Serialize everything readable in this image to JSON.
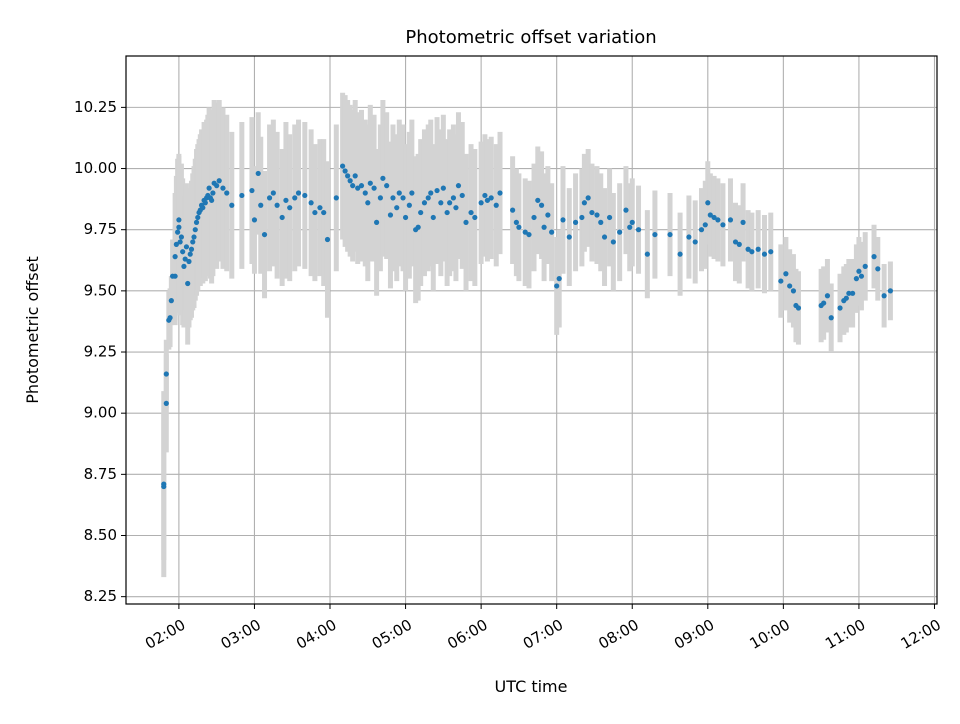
{
  "chart_data": {
    "type": "scatter",
    "title": "Photometric offset variation",
    "xlabel": "UTC time",
    "ylabel": "Photometric offset",
    "x_unit": "hours UTC",
    "xlim": [
      "01:18",
      "12:02"
    ],
    "ylim": [
      8.22,
      10.46
    ],
    "x_ticks": [
      "02:00",
      "03:00",
      "04:00",
      "05:00",
      "06:00",
      "07:00",
      "08:00",
      "09:00",
      "10:00",
      "11:00",
      "12:00"
    ],
    "y_ticks": [
      "8.25",
      "8.50",
      "8.75",
      "9.00",
      "9.25",
      "9.50",
      "9.75",
      "10.00",
      "10.25"
    ],
    "grid": true,
    "marker_color": "#1f77b4",
    "errorbar_color": "#d3d3d3",
    "points": [
      [
        "01:48",
        8.71,
        0.38
      ],
      [
        "01:48",
        8.7,
        0.3
      ],
      [
        "01:50",
        9.04,
        0.2
      ],
      [
        "01:50",
        9.16,
        0.14
      ],
      [
        "01:52",
        9.38,
        0.12
      ],
      [
        "01:53",
        9.39,
        0.12
      ],
      [
        "01:54",
        9.46,
        0.1
      ],
      [
        "01:55",
        9.56,
        0.15
      ],
      [
        "01:57",
        9.56,
        0.2
      ],
      [
        "01:57",
        9.64,
        0.26
      ],
      [
        "01:58",
        9.69,
        0.28
      ],
      [
        "01:59",
        9.74,
        0.3
      ],
      [
        "02:00",
        9.79,
        0.26
      ],
      [
        "02:00",
        9.76,
        0.3
      ],
      [
        "02:01",
        9.7,
        0.3
      ],
      [
        "02:02",
        9.72,
        0.3
      ],
      [
        "02:03",
        9.66,
        0.3
      ],
      [
        "02:04",
        9.6,
        0.25
      ],
      [
        "02:05",
        9.63,
        0.26
      ],
      [
        "02:06",
        9.68,
        0.26
      ],
      [
        "02:07",
        9.53,
        0.25
      ],
      [
        "02:08",
        9.62,
        0.27
      ],
      [
        "02:09",
        9.65,
        0.27
      ],
      [
        "02:10",
        9.67,
        0.28
      ],
      [
        "02:11",
        9.7,
        0.28
      ],
      [
        "02:12",
        9.72,
        0.29
      ],
      [
        "02:13",
        9.75,
        0.29
      ],
      [
        "02:14",
        9.78,
        0.3
      ],
      [
        "02:15",
        9.8,
        0.3
      ],
      [
        "02:16",
        9.82,
        0.3
      ],
      [
        "02:17",
        9.83,
        0.31
      ],
      [
        "02:18",
        9.85,
        0.31
      ],
      [
        "02:19",
        9.84,
        0.31
      ],
      [
        "02:20",
        9.87,
        0.32
      ],
      [
        "02:21",
        9.86,
        0.32
      ],
      [
        "02:22",
        9.88,
        0.32
      ],
      [
        "02:23",
        9.89,
        0.33
      ],
      [
        "02:24",
        9.92,
        0.33
      ],
      [
        "02:25",
        9.88,
        0.33
      ],
      [
        "02:26",
        9.87,
        0.34
      ],
      [
        "02:27",
        9.9,
        0.34
      ],
      [
        "02:28",
        9.94,
        0.34
      ],
      [
        "02:30",
        9.93,
        0.34
      ],
      [
        "02:32",
        9.95,
        0.33
      ],
      [
        "02:35",
        9.92,
        0.33
      ],
      [
        "02:38",
        9.9,
        0.32
      ],
      [
        "02:42",
        9.85,
        0.3
      ],
      [
        "02:50",
        9.89,
        0.3
      ],
      [
        "02:58",
        9.91,
        0.3
      ],
      [
        "03:00",
        9.79,
        0.22
      ],
      [
        "03:03",
        9.98,
        0.25
      ],
      [
        "03:05",
        9.85,
        0.28
      ],
      [
        "03:08",
        9.73,
        0.26
      ],
      [
        "03:12",
        9.88,
        0.3
      ],
      [
        "03:15",
        9.9,
        0.3
      ],
      [
        "03:18",
        9.85,
        0.3
      ],
      [
        "03:22",
        9.8,
        0.28
      ],
      [
        "03:25",
        9.87,
        0.32
      ],
      [
        "03:28",
        9.84,
        0.3
      ],
      [
        "03:32",
        9.88,
        0.3
      ],
      [
        "03:35",
        9.9,
        0.3
      ],
      [
        "03:40",
        9.89,
        0.3
      ],
      [
        "03:45",
        9.86,
        0.3
      ],
      [
        "03:48",
        9.82,
        0.28
      ],
      [
        "03:52",
        9.84,
        0.28
      ],
      [
        "03:55",
        9.82,
        0.3
      ],
      [
        "03:58",
        9.71,
        0.32
      ],
      [
        "04:05",
        9.88,
        0.3
      ],
      [
        "04:10",
        10.01,
        0.3
      ],
      [
        "04:12",
        9.99,
        0.31
      ],
      [
        "04:14",
        9.97,
        0.31
      ],
      [
        "04:16",
        9.95,
        0.31
      ],
      [
        "04:18",
        9.93,
        0.31
      ],
      [
        "04:20",
        9.97,
        0.31
      ],
      [
        "04:22",
        9.92,
        0.31
      ],
      [
        "04:25",
        9.93,
        0.31
      ],
      [
        "04:28",
        9.9,
        0.3
      ],
      [
        "04:30",
        9.86,
        0.32
      ],
      [
        "04:32",
        9.94,
        0.32
      ],
      [
        "04:35",
        9.92,
        0.3
      ],
      [
        "04:37",
        9.78,
        0.3
      ],
      [
        "04:40",
        9.88,
        0.3
      ],
      [
        "04:42",
        9.96,
        0.32
      ],
      [
        "04:45",
        9.93,
        0.3
      ],
      [
        "04:48",
        9.81,
        0.3
      ],
      [
        "04:50",
        9.88,
        0.3
      ],
      [
        "04:53",
        9.84,
        0.3
      ],
      [
        "04:55",
        9.9,
        0.3
      ],
      [
        "04:58",
        9.88,
        0.3
      ],
      [
        "05:00",
        9.8,
        0.3
      ],
      [
        "05:03",
        9.85,
        0.3
      ],
      [
        "05:05",
        9.9,
        0.3
      ],
      [
        "05:08",
        9.75,
        0.3
      ],
      [
        "05:10",
        9.76,
        0.3
      ],
      [
        "05:12",
        9.82,
        0.3
      ],
      [
        "05:15",
        9.86,
        0.3
      ],
      [
        "05:18",
        9.88,
        0.3
      ],
      [
        "05:20",
        9.9,
        0.3
      ],
      [
        "05:22",
        9.8,
        0.3
      ],
      [
        "05:25",
        9.91,
        0.3
      ],
      [
        "05:28",
        9.86,
        0.3
      ],
      [
        "05:30",
        9.92,
        0.3
      ],
      [
        "05:33",
        9.82,
        0.3
      ],
      [
        "05:35",
        9.86,
        0.3
      ],
      [
        "05:38",
        9.88,
        0.3
      ],
      [
        "05:40",
        9.84,
        0.3
      ],
      [
        "05:42",
        9.93,
        0.3
      ],
      [
        "05:45",
        9.89,
        0.3
      ],
      [
        "05:48",
        9.78,
        0.28
      ],
      [
        "05:52",
        9.82,
        0.28
      ],
      [
        "05:55",
        9.8,
        0.28
      ],
      [
        "06:00",
        9.86,
        0.25
      ],
      [
        "06:03",
        9.89,
        0.25
      ],
      [
        "06:05",
        9.87,
        0.25
      ],
      [
        "06:08",
        9.88,
        0.25
      ],
      [
        "06:12",
        9.85,
        0.25
      ],
      [
        "06:15",
        9.9,
        0.25
      ],
      [
        "06:25",
        9.83,
        0.22
      ],
      [
        "06:28",
        9.78,
        0.22
      ],
      [
        "06:30",
        9.76,
        0.22
      ],
      [
        "06:35",
        9.74,
        0.22
      ],
      [
        "06:38",
        9.73,
        0.22
      ],
      [
        "06:42",
        9.8,
        0.22
      ],
      [
        "06:45",
        9.87,
        0.22
      ],
      [
        "06:48",
        9.85,
        0.22
      ],
      [
        "06:50",
        9.76,
        0.22
      ],
      [
        "06:53",
        9.81,
        0.2
      ],
      [
        "06:56",
        9.74,
        0.2
      ],
      [
        "07:00",
        9.52,
        0.2
      ],
      [
        "07:02",
        9.55,
        0.2
      ],
      [
        "07:05",
        9.79,
        0.22
      ],
      [
        "07:10",
        9.72,
        0.2
      ],
      [
        "07:15",
        9.78,
        0.2
      ],
      [
        "07:20",
        9.8,
        0.2
      ],
      [
        "07:22",
        9.86,
        0.2
      ],
      [
        "07:25",
        9.88,
        0.2
      ],
      [
        "07:28",
        9.82,
        0.2
      ],
      [
        "07:32",
        9.81,
        0.2
      ],
      [
        "07:35",
        9.78,
        0.2
      ],
      [
        "07:38",
        9.72,
        0.2
      ],
      [
        "07:42",
        9.8,
        0.2
      ],
      [
        "07:45",
        9.7,
        0.2
      ],
      [
        "07:50",
        9.74,
        0.2
      ],
      [
        "07:55",
        9.83,
        0.18
      ],
      [
        "07:58",
        9.76,
        0.18
      ],
      [
        "08:00",
        9.78,
        0.18
      ],
      [
        "08:05",
        9.75,
        0.18
      ],
      [
        "08:12",
        9.65,
        0.18
      ],
      [
        "08:18",
        9.73,
        0.18
      ],
      [
        "08:30",
        9.73,
        0.17
      ],
      [
        "08:38",
        9.65,
        0.17
      ],
      [
        "08:45",
        9.72,
        0.17
      ],
      [
        "08:50",
        9.7,
        0.17
      ],
      [
        "08:55",
        9.75,
        0.17
      ],
      [
        "08:58",
        9.77,
        0.18
      ],
      [
        "09:00",
        9.86,
        0.17
      ],
      [
        "09:02",
        9.81,
        0.17
      ],
      [
        "09:05",
        9.8,
        0.17
      ],
      [
        "09:08",
        9.79,
        0.17
      ],
      [
        "09:12",
        9.77,
        0.17
      ],
      [
        "09:18",
        9.79,
        0.17
      ],
      [
        "09:22",
        9.7,
        0.16
      ],
      [
        "09:25",
        9.69,
        0.16
      ],
      [
        "09:28",
        9.78,
        0.16
      ],
      [
        "09:32",
        9.67,
        0.16
      ],
      [
        "09:35",
        9.66,
        0.16
      ],
      [
        "09:40",
        9.67,
        0.16
      ],
      [
        "09:45",
        9.65,
        0.16
      ],
      [
        "09:50",
        9.66,
        0.16
      ],
      [
        "09:58",
        9.54,
        0.15
      ],
      [
        "10:02",
        9.57,
        0.15
      ],
      [
        "10:05",
        9.52,
        0.15
      ],
      [
        "10:08",
        9.5,
        0.15
      ],
      [
        "10:10",
        9.44,
        0.15
      ],
      [
        "10:12",
        9.43,
        0.15
      ],
      [
        "10:30",
        9.44,
        0.15
      ],
      [
        "10:32",
        9.45,
        0.15
      ],
      [
        "10:35",
        9.48,
        0.15
      ],
      [
        "10:38",
        9.39,
        0.14
      ],
      [
        "10:45",
        9.43,
        0.14
      ],
      [
        "10:48",
        9.46,
        0.14
      ],
      [
        "10:50",
        9.47,
        0.14
      ],
      [
        "10:52",
        9.49,
        0.14
      ],
      [
        "10:55",
        9.49,
        0.14
      ],
      [
        "10:58",
        9.55,
        0.14
      ],
      [
        "11:00",
        9.58,
        0.14
      ],
      [
        "11:02",
        9.56,
        0.14
      ],
      [
        "11:05",
        9.6,
        0.14
      ],
      [
        "11:12",
        9.64,
        0.13
      ],
      [
        "11:15",
        9.59,
        0.13
      ],
      [
        "11:20",
        9.48,
        0.13
      ],
      [
        "11:25",
        9.5,
        0.12
      ]
    ]
  }
}
